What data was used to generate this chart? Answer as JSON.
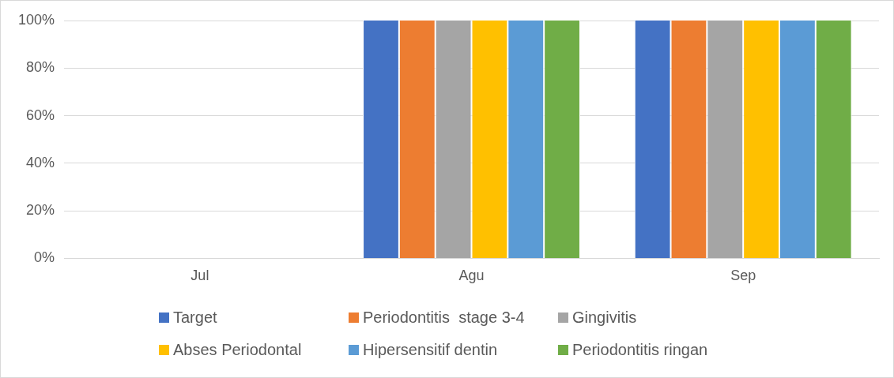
{
  "chart_data": {
    "type": "bar",
    "categories": [
      "Jul",
      "Agu",
      "Sep"
    ],
    "series": [
      {
        "name": "Target",
        "color": "#4472c4",
        "values": [
          0,
          100,
          100
        ]
      },
      {
        "name": "Periodontitis  stage 3-4",
        "color": "#ed7d31",
        "values": [
          0,
          100,
          100
        ]
      },
      {
        "name": "Gingivitis",
        "color": "#a5a5a5",
        "values": [
          0,
          100,
          100
        ]
      },
      {
        "name": "Abses Periodontal",
        "color": "#ffc000",
        "values": [
          0,
          100,
          100
        ]
      },
      {
        "name": "Hipersensitif dentin",
        "color": "#5b9bd5",
        "values": [
          0,
          100,
          100
        ]
      },
      {
        "name": "Periodontitis ringan",
        "color": "#70ad47",
        "values": [
          0,
          100,
          100
        ]
      }
    ],
    "ylim": [
      0,
      100
    ],
    "yticks": [
      {
        "value": 0,
        "label": "0%"
      },
      {
        "value": 20,
        "label": "20%"
      },
      {
        "value": 40,
        "label": "40%"
      },
      {
        "value": 60,
        "label": "60%"
      },
      {
        "value": 80,
        "label": "80%"
      },
      {
        "value": 100,
        "label": "100%"
      }
    ],
    "grid": "y",
    "legend": "bottom"
  }
}
